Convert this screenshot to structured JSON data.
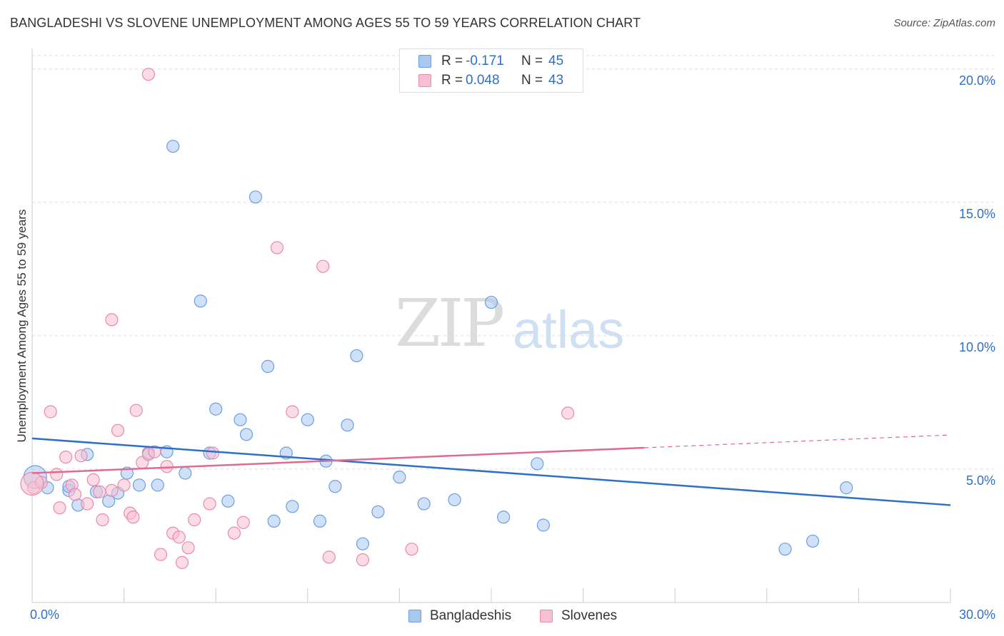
{
  "header": {
    "title": "BANGLADESHI VS SLOVENE UNEMPLOYMENT AMONG AGES 55 TO 59 YEARS CORRELATION CHART",
    "source": "Source: ZipAtlas.com"
  },
  "watermark": {
    "zip": "ZIP",
    "atlas": "atlas"
  },
  "legend": {
    "rows": [
      {
        "r_label": "R =",
        "r_value": "-0.171",
        "n_label": "N =",
        "n_value": "45",
        "color": "#a9c8f0",
        "border": "#6b9ee0"
      },
      {
        "r_label": "R =",
        "r_value": "0.048",
        "n_label": "N =",
        "n_value": "43",
        "color": "#f7c0d2",
        "border": "#e98aab"
      }
    ]
  },
  "bottom_legend": [
    {
      "label": "Bangladeshis",
      "color": "#a9c8f0",
      "border": "#6b9ee0"
    },
    {
      "label": "Slovenes",
      "color": "#f7c0d2",
      "border": "#e98aab"
    }
  ],
  "chart_data": {
    "type": "scatter",
    "title": "BANGLADESHI VS SLOVENE UNEMPLOYMENT AMONG AGES 55 TO 59 YEARS CORRELATION CHART",
    "xlabel": "",
    "ylabel": "Unemployment Among Ages 55 to 59 years",
    "xlim": [
      0,
      30
    ],
    "ylim": [
      0,
      20.5
    ],
    "x_tick_labels": [
      "0.0%",
      "30.0%"
    ],
    "y_ticks": [
      5,
      10,
      15,
      20
    ],
    "y_tick_labels": [
      "5.0%",
      "10.0%",
      "15.0%",
      "20.0%"
    ],
    "grid": true,
    "legend_position": "top-center",
    "series": [
      {
        "name": "Bangladeshis",
        "color": "#6b9ee0",
        "fill": "#a9c8f0",
        "trend_color": "#2f6fc7",
        "trend": {
          "x": [
            0,
            30
          ],
          "y": [
            6.15,
            3.65
          ]
        },
        "points": [
          [
            0.1,
            4.7
          ],
          [
            0.5,
            4.3
          ],
          [
            1.2,
            4.2
          ],
          [
            1.2,
            4.35
          ],
          [
            1.5,
            3.65
          ],
          [
            1.8,
            5.55
          ],
          [
            2.1,
            4.15
          ],
          [
            2.5,
            3.8
          ],
          [
            2.8,
            4.1
          ],
          [
            3.1,
            4.85
          ],
          [
            3.5,
            4.4
          ],
          [
            3.8,
            5.6
          ],
          [
            4.1,
            4.4
          ],
          [
            4.4,
            5.65
          ],
          [
            4.6,
            17.1
          ],
          [
            5.0,
            4.85
          ],
          [
            5.5,
            11.3
          ],
          [
            5.8,
            5.6
          ],
          [
            6.0,
            7.25
          ],
          [
            6.4,
            3.8
          ],
          [
            6.8,
            6.85
          ],
          [
            7.0,
            6.3
          ],
          [
            7.3,
            15.2
          ],
          [
            7.7,
            8.85
          ],
          [
            7.9,
            3.05
          ],
          [
            8.3,
            5.6
          ],
          [
            8.5,
            3.6
          ],
          [
            9.0,
            6.85
          ],
          [
            9.4,
            3.05
          ],
          [
            9.6,
            5.3
          ],
          [
            9.9,
            4.35
          ],
          [
            10.3,
            6.65
          ],
          [
            10.6,
            9.25
          ],
          [
            10.8,
            2.2
          ],
          [
            11.3,
            3.4
          ],
          [
            12.0,
            4.7
          ],
          [
            12.8,
            3.7
          ],
          [
            13.8,
            3.85
          ],
          [
            15.0,
            11.25
          ],
          [
            15.4,
            3.2
          ],
          [
            16.5,
            5.2
          ],
          [
            16.7,
            2.9
          ],
          [
            24.6,
            2.0
          ],
          [
            25.5,
            2.3
          ],
          [
            26.6,
            4.3
          ]
        ]
      },
      {
        "name": "Slovenes",
        "color": "#e98aab",
        "fill": "#f7c0d2",
        "trend_color": "#e06b92",
        "trend": {
          "x": [
            0,
            20
          ],
          "y": [
            4.85,
            5.8
          ]
        },
        "trend_dashed": {
          "x": [
            20,
            30
          ],
          "y": [
            5.8,
            6.28
          ]
        },
        "points": [
          [
            0.05,
            4.3
          ],
          [
            0.3,
            4.5
          ],
          [
            0.6,
            7.15
          ],
          [
            0.8,
            4.8
          ],
          [
            0.9,
            3.55
          ],
          [
            1.1,
            5.45
          ],
          [
            1.3,
            4.4
          ],
          [
            1.4,
            4.05
          ],
          [
            1.6,
            5.5
          ],
          [
            1.8,
            3.7
          ],
          [
            2.0,
            4.6
          ],
          [
            2.2,
            4.15
          ],
          [
            2.3,
            3.1
          ],
          [
            2.6,
            4.2
          ],
          [
            2.6,
            10.6
          ],
          [
            2.8,
            6.45
          ],
          [
            3.0,
            4.4
          ],
          [
            3.2,
            3.35
          ],
          [
            3.3,
            3.2
          ],
          [
            3.4,
            7.2
          ],
          [
            3.6,
            5.25
          ],
          [
            3.8,
            5.55
          ],
          [
            3.8,
            19.8
          ],
          [
            4.0,
            5.65
          ],
          [
            4.2,
            1.8
          ],
          [
            4.4,
            5.1
          ],
          [
            4.6,
            2.6
          ],
          [
            4.8,
            2.45
          ],
          [
            4.9,
            1.5
          ],
          [
            5.1,
            2.05
          ],
          [
            5.3,
            3.1
          ],
          [
            5.8,
            3.7
          ],
          [
            5.9,
            5.6
          ],
          [
            6.6,
            2.6
          ],
          [
            6.9,
            3.0
          ],
          [
            8.0,
            13.3
          ],
          [
            8.5,
            7.15
          ],
          [
            9.5,
            12.6
          ],
          [
            9.7,
            1.7
          ],
          [
            10.8,
            1.6
          ],
          [
            12.4,
            2.0
          ],
          [
            17.5,
            7.1
          ],
          [
            0.0,
            4.45
          ]
        ]
      }
    ]
  }
}
